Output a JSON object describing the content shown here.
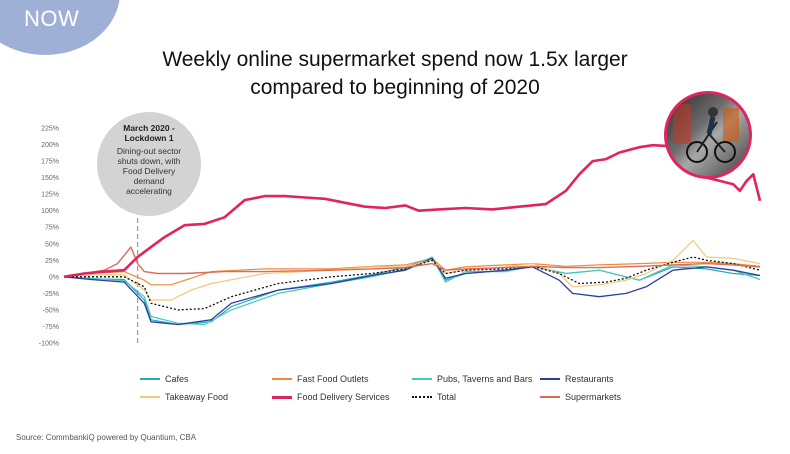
{
  "badge": {
    "label": "NOW"
  },
  "title_lines": [
    "Weekly online supermarket spend now 1.5x larger",
    "compared to beginning of 2020"
  ],
  "callout": {
    "title": "March 2020 - Lockdown 1",
    "body": "Dining-out sector shuts down, with Food Delivery demand accelerating"
  },
  "source": "Source: CommbankiQ powered by Quantium, CBA",
  "photo": {
    "icon": "cyclist-photo"
  },
  "chart_data": {
    "type": "line",
    "title": "Weekly online supermarket spend now 1.5x larger compared to beginning of 2020",
    "xlabel": "",
    "ylabel": "",
    "ylim": [
      -100,
      225
    ],
    "yticks": [
      "225%",
      "200%",
      "175%",
      "150%",
      "125%",
      "100%",
      "75%",
      "50%",
      "25%",
      "0%",
      "-25%",
      "-50%",
      "-75%",
      "-100%"
    ],
    "grid": false,
    "legend_position": "bottom",
    "event_marker_week": 11,
    "weeks": 105,
    "series": [
      {
        "name": "Cafes",
        "color": "#2aa7bf",
        "width": 1.2,
        "dash": "",
        "points": [
          [
            0,
            0
          ],
          [
            4,
            -3
          ],
          [
            9,
            -4
          ],
          [
            12,
            -35
          ],
          [
            13,
            -65
          ],
          [
            17,
            -72
          ],
          [
            22,
            -68
          ],
          [
            25,
            -45
          ],
          [
            32,
            -20
          ],
          [
            40,
            -8
          ],
          [
            46,
            3
          ],
          [
            51,
            15
          ],
          [
            55,
            28
          ],
          [
            57,
            -5
          ],
          [
            60,
            5
          ],
          [
            66,
            10
          ],
          [
            70,
            16
          ],
          [
            75,
            5
          ],
          [
            80,
            10
          ],
          [
            86,
            -5
          ],
          [
            91,
            15
          ],
          [
            96,
            12
          ],
          [
            100,
            5
          ],
          [
            104,
            2
          ]
        ]
      },
      {
        "name": "Fast Food Outlets",
        "color": "#f08a3a",
        "width": 1.2,
        "dash": "",
        "points": [
          [
            0,
            0
          ],
          [
            4,
            5
          ],
          [
            9,
            8
          ],
          [
            12,
            -5
          ],
          [
            13,
            -12
          ],
          [
            16,
            -12
          ],
          [
            19,
            -2
          ],
          [
            22,
            8
          ],
          [
            30,
            12
          ],
          [
            40,
            12
          ],
          [
            46,
            16
          ],
          [
            51,
            18
          ],
          [
            55,
            28
          ],
          [
            57,
            10
          ],
          [
            60,
            15
          ],
          [
            66,
            18
          ],
          [
            70,
            20
          ],
          [
            75,
            16
          ],
          [
            80,
            18
          ],
          [
            86,
            20
          ],
          [
            91,
            22
          ],
          [
            96,
            22
          ],
          [
            100,
            20
          ],
          [
            104,
            16
          ]
        ]
      },
      {
        "name": "Pubs, Taverns and Bars",
        "color": "#48c9b8",
        "width": 1.2,
        "dash": "",
        "points": [
          [
            0,
            0
          ],
          [
            4,
            -2
          ],
          [
            9,
            -6
          ],
          [
            12,
            -30
          ],
          [
            13,
            -60
          ],
          [
            17,
            -70
          ],
          [
            21,
            -72
          ],
          [
            25,
            -50
          ],
          [
            32,
            -25
          ],
          [
            40,
            -10
          ],
          [
            46,
            0
          ],
          [
            51,
            12
          ],
          [
            55,
            30
          ],
          [
            57,
            -8
          ],
          [
            60,
            8
          ],
          [
            66,
            8
          ],
          [
            70,
            16
          ],
          [
            75,
            5
          ],
          [
            80,
            10
          ],
          [
            86,
            -5
          ],
          [
            91,
            18
          ],
          [
            96,
            15
          ],
          [
            100,
            10
          ],
          [
            104,
            -4
          ]
        ]
      },
      {
        "name": "Restaurants",
        "color": "#2d3f9e",
        "width": 1.3,
        "dash": "",
        "points": [
          [
            0,
            0
          ],
          [
            4,
            -4
          ],
          [
            9,
            -8
          ],
          [
            12,
            -40
          ],
          [
            13,
            -68
          ],
          [
            17,
            -72
          ],
          [
            22,
            -65
          ],
          [
            25,
            -40
          ],
          [
            32,
            -20
          ],
          [
            40,
            -10
          ],
          [
            46,
            2
          ],
          [
            51,
            10
          ],
          [
            55,
            28
          ],
          [
            57,
            -2
          ],
          [
            60,
            5
          ],
          [
            66,
            10
          ],
          [
            70,
            15
          ],
          [
            74,
            -5
          ],
          [
            76,
            -25
          ],
          [
            80,
            -30
          ],
          [
            84,
            -25
          ],
          [
            87,
            -15
          ],
          [
            91,
            10
          ],
          [
            96,
            15
          ],
          [
            100,
            10
          ],
          [
            104,
            2
          ]
        ]
      },
      {
        "name": "Takeaway Food",
        "color": "#f3c879",
        "width": 1.2,
        "dash": "",
        "points": [
          [
            0,
            0
          ],
          [
            4,
            3
          ],
          [
            9,
            3
          ],
          [
            12,
            -20
          ],
          [
            13,
            -35
          ],
          [
            16,
            -35
          ],
          [
            19,
            -20
          ],
          [
            22,
            -10
          ],
          [
            30,
            5
          ],
          [
            40,
            10
          ],
          [
            46,
            15
          ],
          [
            51,
            15
          ],
          [
            55,
            25
          ],
          [
            57,
            5
          ],
          [
            60,
            10
          ],
          [
            66,
            15
          ],
          [
            70,
            20
          ],
          [
            74,
            5
          ],
          [
            76,
            -15
          ],
          [
            80,
            -12
          ],
          [
            84,
            -5
          ],
          [
            87,
            5
          ],
          [
            91,
            25
          ],
          [
            94,
            55
          ],
          [
            96,
            30
          ],
          [
            100,
            28
          ],
          [
            104,
            20
          ]
        ]
      },
      {
        "name": "Food Delivery Services",
        "color": "#e0245e",
        "width": 2.6,
        "dash": "",
        "points": [
          [
            0,
            0
          ],
          [
            3,
            5
          ],
          [
            6,
            8
          ],
          [
            9,
            10
          ],
          [
            11,
            30
          ],
          [
            13,
            45
          ],
          [
            15,
            60
          ],
          [
            18,
            78
          ],
          [
            21,
            80
          ],
          [
            24,
            90
          ],
          [
            27,
            116
          ],
          [
            30,
            122
          ],
          [
            33,
            122
          ],
          [
            36,
            120
          ],
          [
            39,
            118
          ],
          [
            42,
            112
          ],
          [
            45,
            106
          ],
          [
            48,
            104
          ],
          [
            51,
            108
          ],
          [
            53,
            100
          ],
          [
            56,
            102
          ],
          [
            60,
            104
          ],
          [
            64,
            102
          ],
          [
            68,
            106
          ],
          [
            72,
            110
          ],
          [
            75,
            130
          ],
          [
            77,
            155
          ],
          [
            79,
            175
          ],
          [
            81,
            178
          ],
          [
            83,
            188
          ],
          [
            86,
            196
          ],
          [
            88,
            199
          ],
          [
            90,
            198
          ],
          [
            92,
            180
          ],
          [
            94,
            160
          ],
          [
            96,
            150
          ],
          [
            98,
            145
          ],
          [
            100,
            140
          ],
          [
            101,
            130
          ],
          [
            102,
            145
          ],
          [
            103,
            155
          ],
          [
            104,
            115
          ]
        ]
      },
      {
        "name": "Total",
        "color": "#111111",
        "width": 1.3,
        "dash": "2,2",
        "points": [
          [
            0,
            0
          ],
          [
            4,
            0
          ],
          [
            9,
            0
          ],
          [
            12,
            -15
          ],
          [
            13,
            -40
          ],
          [
            17,
            -50
          ],
          [
            21,
            -48
          ],
          [
            25,
            -30
          ],
          [
            32,
            -10
          ],
          [
            40,
            0
          ],
          [
            46,
            5
          ],
          [
            51,
            12
          ],
          [
            55,
            25
          ],
          [
            57,
            5
          ],
          [
            60,
            10
          ],
          [
            66,
            12
          ],
          [
            70,
            16
          ],
          [
            74,
            5
          ],
          [
            77,
            -10
          ],
          [
            81,
            -8
          ],
          [
            84,
            -2
          ],
          [
            87,
            10
          ],
          [
            91,
            22
          ],
          [
            94,
            30
          ],
          [
            96,
            25
          ],
          [
            100,
            20
          ],
          [
            104,
            10
          ]
        ]
      },
      {
        "name": "Supermarkets",
        "color": "#dc6b5b",
        "width": 1.4,
        "dash": "",
        "points": [
          [
            0,
            0
          ],
          [
            3,
            5
          ],
          [
            6,
            10
          ],
          [
            8,
            20
          ],
          [
            10,
            45
          ],
          [
            11,
            20
          ],
          [
            12,
            8
          ],
          [
            14,
            5
          ],
          [
            18,
            5
          ],
          [
            24,
            8
          ],
          [
            30,
            8
          ],
          [
            40,
            10
          ],
          [
            46,
            12
          ],
          [
            51,
            14
          ],
          [
            55,
            20
          ],
          [
            57,
            10
          ],
          [
            60,
            12
          ],
          [
            66,
            14
          ],
          [
            70,
            16
          ],
          [
            75,
            14
          ],
          [
            80,
            14
          ],
          [
            86,
            16
          ],
          [
            91,
            18
          ],
          [
            96,
            20
          ],
          [
            100,
            18
          ],
          [
            104,
            15
          ]
        ]
      }
    ]
  }
}
